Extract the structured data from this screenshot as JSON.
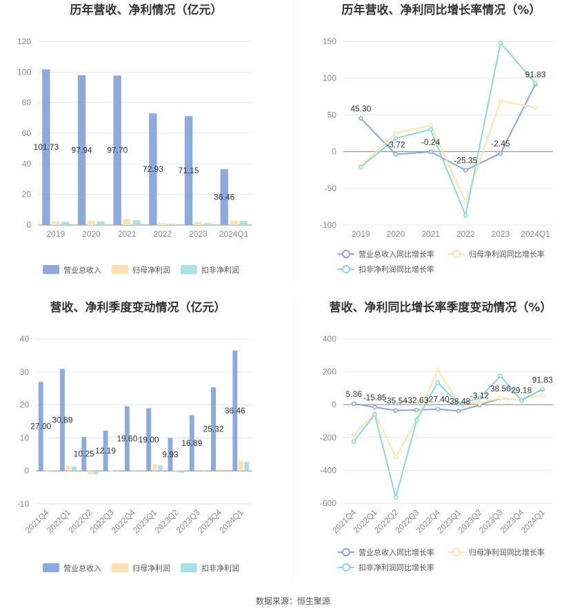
{
  "source_text": "数据来源：恒生聚源",
  "colors": {
    "revenue": "#8eaadb",
    "netprofit": "#fde1b4",
    "deducted": "#a9e1e6",
    "revenue_line": "#8ba5d6",
    "netprofit_line": "#fce3b0",
    "deducted_line": "#8dd7dc",
    "grid": "#e6e6e6",
    "title": "#333333"
  },
  "chart_data": [
    {
      "type": "bar",
      "title": "历年营收、净利情况（亿元）",
      "categories": [
        "2019",
        "2020",
        "2021",
        "2022",
        "2023",
        "2024Q1"
      ],
      "ylim": [
        0,
        120
      ],
      "yticks": [
        0,
        20,
        40,
        60,
        80,
        100,
        120
      ],
      "series": [
        {
          "name": "营业总收入",
          "values": [
            101.73,
            97.94,
            97.7,
            72.93,
            71.15,
            36.46
          ],
          "labels": [
            "101.73",
            "97.94",
            "97.70",
            "72.93",
            "71.15",
            "36.46"
          ]
        },
        {
          "name": "归母净利润",
          "values": [
            2.4,
            2.8,
            4.0,
            1.3,
            2.0,
            3.0
          ]
        },
        {
          "name": "扣非净利润",
          "values": [
            2.1,
            2.4,
            3.2,
            0.7,
            1.2,
            2.6
          ]
        }
      ],
      "legend": "bottom"
    },
    {
      "type": "line",
      "title": "历年营收、净利同比增长率情况（%）",
      "categories": [
        "2019",
        "2020",
        "2021",
        "2022",
        "2023",
        "2024Q1"
      ],
      "ylim": [
        -100,
        150
      ],
      "yticks": [
        -100,
        -50,
        0,
        50,
        100,
        150
      ],
      "series": [
        {
          "name": "营业总收入同比增长率",
          "values": [
            45.3,
            -3.72,
            -0.24,
            -25.35,
            -2.45,
            91.83
          ],
          "labels": [
            "45.30",
            "-3.72",
            "-0.24",
            "-25.35",
            "-2.45",
            "91.83"
          ]
        },
        {
          "name": "归母净利润同比增长率",
          "values": [
            -20,
            25,
            36,
            -68,
            69,
            60
          ]
        },
        {
          "name": "扣非净利润同比增长率",
          "values": [
            -21,
            18,
            30,
            -87,
            148,
            93
          ]
        }
      ],
      "legend": "bottom"
    },
    {
      "type": "bar",
      "title": "营收、净利季度变动情况（亿元）",
      "categories": [
        "2021Q4",
        "2022Q1",
        "2022Q2",
        "2022Q3",
        "2022Q4",
        "2023Q1",
        "2023Q2",
        "2023Q3",
        "2023Q4",
        "2024Q1"
      ],
      "ylim": [
        -10,
        40
      ],
      "yticks": [
        -10,
        0,
        10,
        20,
        30,
        40
      ],
      "series": [
        {
          "name": "营业总收入",
          "values": [
            27.0,
            30.89,
            10.25,
            12.19,
            19.6,
            19.0,
            9.93,
            16.89,
            25.32,
            36.46
          ],
          "labels": [
            "27.00",
            "30.89",
            "10.25",
            "12.19",
            "19.60",
            "19.00",
            "9.93",
            "16.89",
            "25.32",
            "36.46"
          ]
        },
        {
          "name": "归母净利润",
          "values": [
            -0.2,
            1.6,
            -1.0,
            0.1,
            0.2,
            2.0,
            -0.4,
            0.3,
            0.5,
            3.1
          ]
        },
        {
          "name": "扣非净利润",
          "values": [
            -0.3,
            1.3,
            -1.0,
            0.0,
            0.2,
            1.6,
            -0.6,
            0.2,
            0.3,
            2.7
          ]
        }
      ],
      "legend": "bottom"
    },
    {
      "type": "line",
      "title": "营收、净利同比增长率季度变动情况（%）",
      "categories": [
        "2021Q4",
        "2022Q1",
        "2022Q2",
        "2022Q3",
        "2022Q4",
        "2023Q1",
        "2023Q2",
        "2023Q3",
        "2023Q4",
        "2024Q1"
      ],
      "ylim": [
        -600,
        400
      ],
      "yticks": [
        -600,
        -400,
        -200,
        0,
        200,
        400
      ],
      "series": [
        {
          "name": "营业总收入同比增长率",
          "values": [
            5.36,
            -15.85,
            -35.54,
            -32.63,
            -27.4,
            -38.48,
            -3.12,
            38.56,
            29.18,
            91.83
          ],
          "labels": [
            "5.36",
            "-15.85",
            "-35.54",
            "-32.63",
            "-27.40",
            "-38.48",
            "-3.12",
            "38.56",
            "29.18",
            "91.83"
          ]
        },
        {
          "name": "归母净利润同比增长率",
          "values": [
            -185,
            -50,
            -320,
            -90,
            212,
            10,
            10,
            40,
            30,
            60
          ]
        },
        {
          "name": "扣非净利润同比增长率",
          "values": [
            -225,
            -60,
            -565,
            -95,
            135,
            5,
            40,
            175,
            25,
            95
          ]
        }
      ],
      "legend": "bottom"
    }
  ]
}
